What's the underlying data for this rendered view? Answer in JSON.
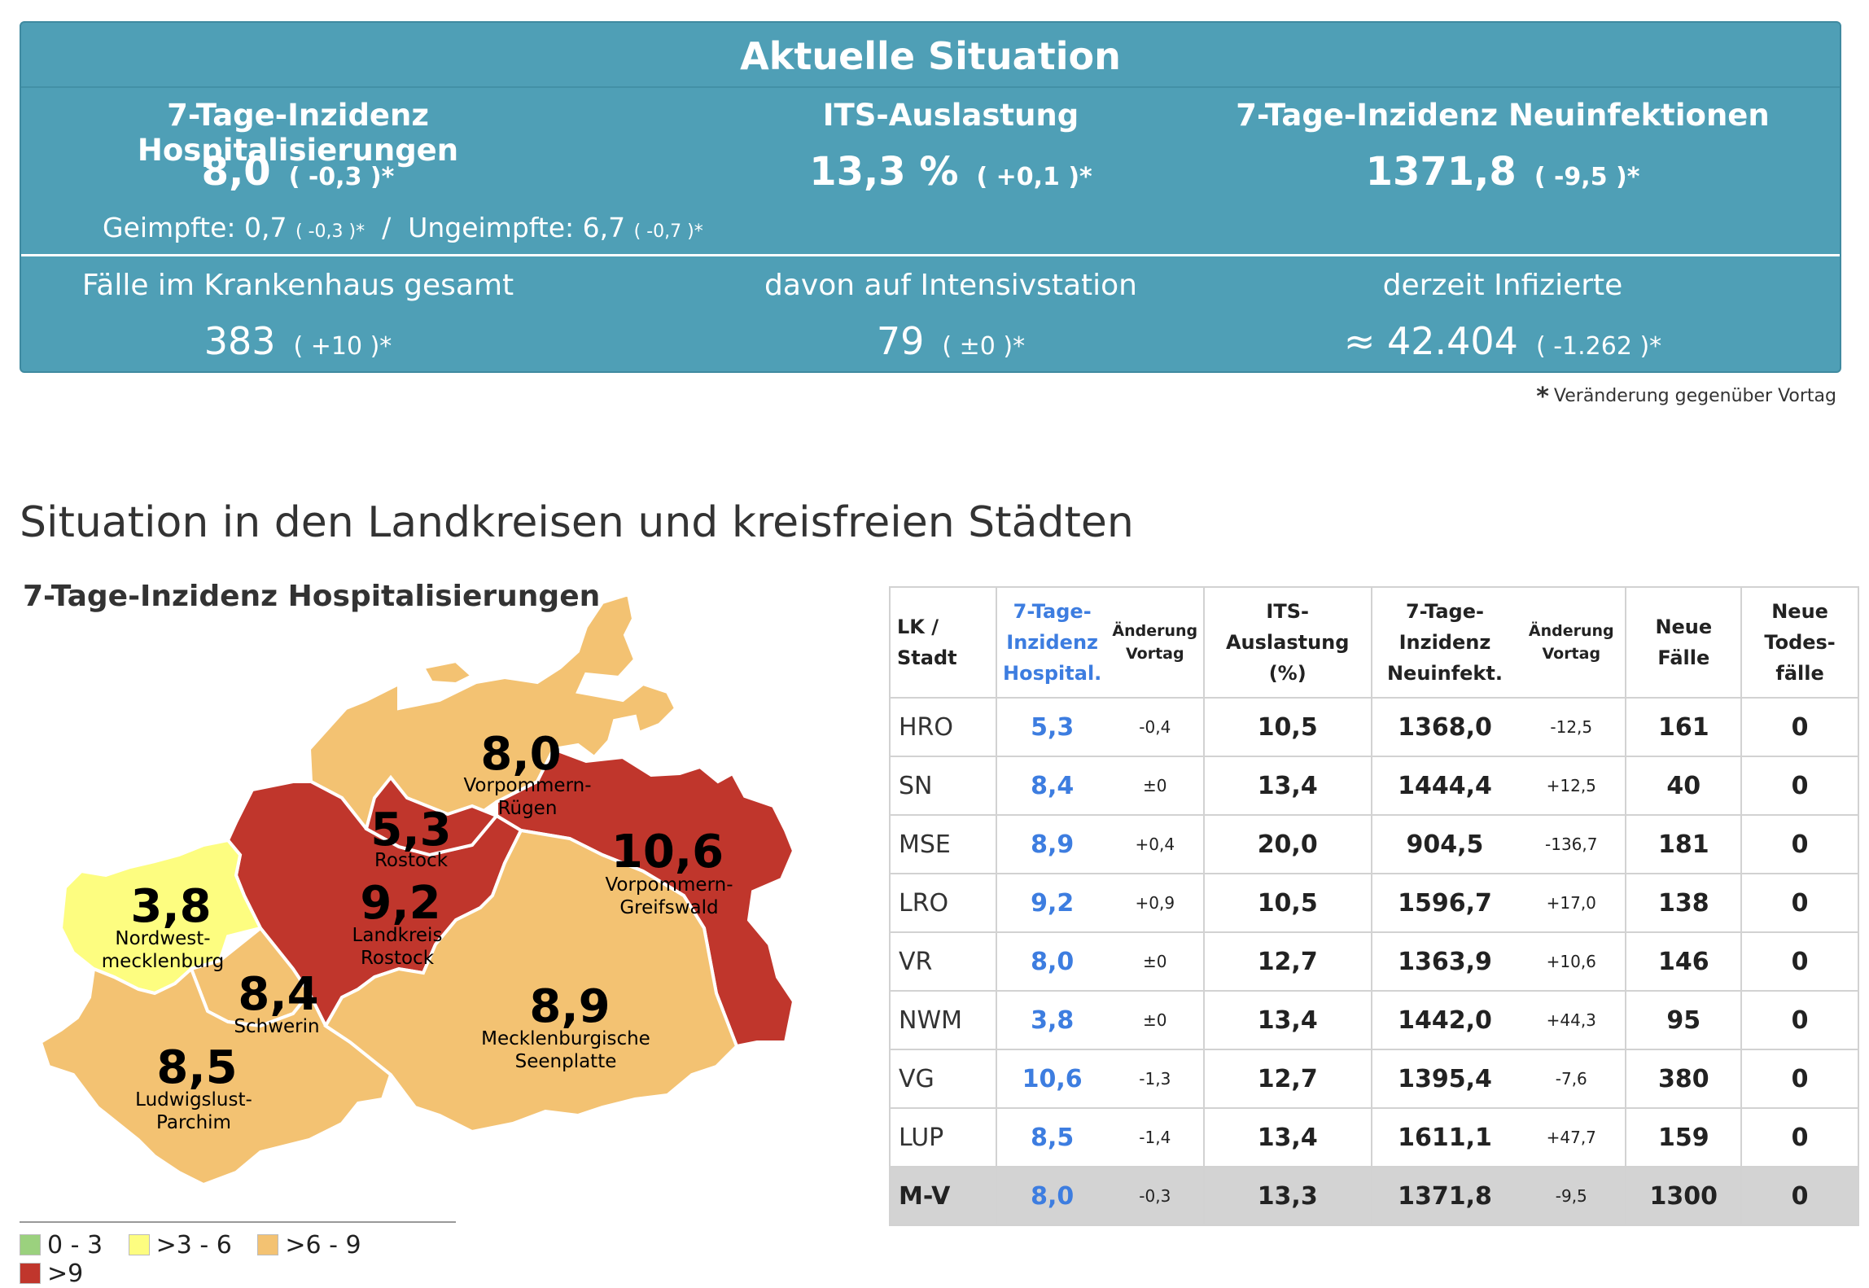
{
  "summary": {
    "title": "Aktuelle Situation",
    "hosp": {
      "label": "7-Tage-Inzidenz Hospitalisierungen",
      "value": "8,0",
      "change": "( -0,3 )*"
    },
    "its": {
      "label": "ITS-Auslastung",
      "value": "13,3 %",
      "change": "( +0,1 )*"
    },
    "neu": {
      "label": "7-Tage-Inzidenz Neuinfektionen",
      "value": "1371,8",
      "change": "( -9,5 )*"
    },
    "geimpfte": {
      "label": "Geimpfte: 0,7",
      "change": "( -0,3 )*",
      "sep": "/",
      "label2": "Ungeimpfte: 6,7",
      "change2": "( -0,7 )*"
    },
    "kh": {
      "label": "Fälle im Krankenhaus gesamt",
      "value": "383",
      "change": "( +10 )*"
    },
    "intensiv": {
      "label": "davon auf Intensivstation",
      "value": "79",
      "change": "( ±0 )*"
    },
    "infizierte": {
      "label": "derzeit Infizierte",
      "value": "≈ 42.404",
      "change": "( -1.262 )*"
    },
    "footnote_star": "*",
    "footnote": "Veränderung gegenüber Vortag"
  },
  "section_title": "Situation in den Landkreisen und kreisfreien Städten",
  "map": {
    "title": "7-Tage-Inzidenz Hospitalisierungen",
    "colors": {
      "0-3": "#9bd17e",
      "3-6": "#fdfd80",
      "6-9": "#f3c272",
      ">9": "#c0362c"
    },
    "regions": {
      "vr": {
        "value": "8,0",
        "name1": "Vorpommern-",
        "name2": "Rügen"
      },
      "hro": {
        "value": "5,3",
        "name1": "Rostock"
      },
      "lro": {
        "value": "9,2",
        "name1": "Landkreis",
        "name2": "Rostock"
      },
      "vg": {
        "value": "10,6",
        "name1": "Vorpommern-",
        "name2": "Greifswald"
      },
      "nwm": {
        "value": "3,8",
        "name1": "Nordwest-",
        "name2": "mecklenburg"
      },
      "sn": {
        "value": "8,4",
        "name1": "Schwerin"
      },
      "mse": {
        "value": "8,9",
        "name1": "Mecklenburgische",
        "name2": "Seenplatte"
      },
      "lup": {
        "value": "8,5",
        "name1": "Ludwigslust-",
        "name2": "Parchim"
      }
    },
    "legend": [
      "0 - 3",
      ">3 - 6",
      ">6 - 9",
      ">9"
    ]
  },
  "table": {
    "headers": {
      "lk1": "LK /",
      "lk2": "Stadt",
      "h1": "7-Tage-",
      "h2": "Inzidenz",
      "h3": "Hospital.",
      "a1": "Änderung",
      "a2": "Vortag",
      "its1": "ITS-",
      "its2": "Auslastung",
      "its3": "(%)",
      "n1": "7-Tage-",
      "n2": "Inzidenz",
      "n3": "Neuinfekt.",
      "b1": "Änderung",
      "b2": "Vortag",
      "f1": "Neue",
      "f2": "Fälle",
      "t1": "Neue",
      "t2": "Todes-",
      "t3": "fälle"
    },
    "rows": [
      {
        "lk": "HRO",
        "hosp": "5,3",
        "hosp_chg": "-0,4",
        "its": "10,5",
        "inz": "1368,0",
        "inz_chg": "-12,5",
        "faelle": "161",
        "tote": "0"
      },
      {
        "lk": "SN",
        "hosp": "8,4",
        "hosp_chg": "±0",
        "its": "13,4",
        "inz": "1444,4",
        "inz_chg": "+12,5",
        "faelle": "40",
        "tote": "0"
      },
      {
        "lk": "MSE",
        "hosp": "8,9",
        "hosp_chg": "+0,4",
        "its": "20,0",
        "inz": "904,5",
        "inz_chg": "-136,7",
        "faelle": "181",
        "tote": "0"
      },
      {
        "lk": "LRO",
        "hosp": "9,2",
        "hosp_chg": "+0,9",
        "its": "10,5",
        "inz": "1596,7",
        "inz_chg": "+17,0",
        "faelle": "138",
        "tote": "0"
      },
      {
        "lk": "VR",
        "hosp": "8,0",
        "hosp_chg": "±0",
        "its": "12,7",
        "inz": "1363,9",
        "inz_chg": "+10,6",
        "faelle": "146",
        "tote": "0"
      },
      {
        "lk": "NWM",
        "hosp": "3,8",
        "hosp_chg": "±0",
        "its": "13,4",
        "inz": "1442,0",
        "inz_chg": "+44,3",
        "faelle": "95",
        "tote": "0"
      },
      {
        "lk": "VG",
        "hosp": "10,6",
        "hosp_chg": "-1,3",
        "its": "12,7",
        "inz": "1395,4",
        "inz_chg": "-7,6",
        "faelle": "380",
        "tote": "0"
      },
      {
        "lk": "LUP",
        "hosp": "8,5",
        "hosp_chg": "-1,4",
        "its": "13,4",
        "inz": "1611,1",
        "inz_chg": "+47,7",
        "faelle": "159",
        "tote": "0"
      },
      {
        "lk": "M-V",
        "hosp": "8,0",
        "hosp_chg": "-0,3",
        "its": "13,3",
        "inz": "1371,8",
        "inz_chg": "-9,5",
        "faelle": "1300",
        "tote": "0"
      }
    ]
  }
}
